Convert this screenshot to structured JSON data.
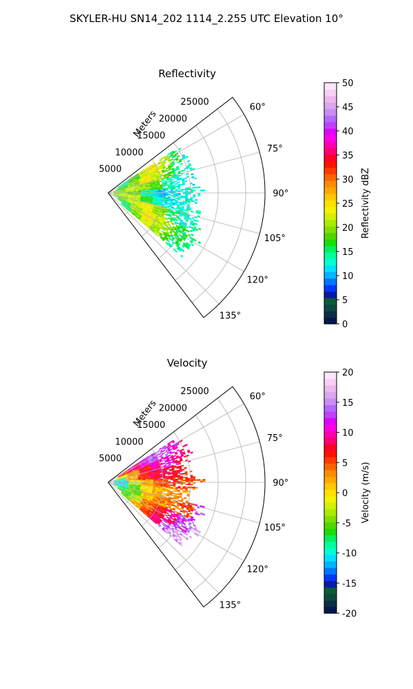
{
  "figure": {
    "suptitle": "SKYLER-HU  SN14_202  1114_2.255 UTC Elevation 10°"
  },
  "chart_data": [
    {
      "type": "heatmap",
      "projection": "polar-sector",
      "title": "Reflectivity",
      "range_label": "Meters",
      "range_max": 28500,
      "range_ticks": [
        5000,
        10000,
        15000,
        20000,
        25000
      ],
      "azimuth_range_deg": [
        52.5,
        142.5
      ],
      "azimuth_ticks_deg": [
        60,
        75,
        90,
        105,
        120,
        135
      ],
      "grid": true,
      "colorbar": {
        "label": "Reflectivity dBZ",
        "min": 0,
        "max": 50,
        "ticks": [
          0,
          5,
          10,
          15,
          20,
          25,
          30,
          35,
          40,
          45,
          50
        ],
        "colors": [
          "#06164f",
          "#0a2e46",
          "#0b4a3f",
          "#0c5a39",
          "#0b1aa6",
          "#0038ff",
          "#0075ff",
          "#00b4ff",
          "#00e0ff",
          "#00ffd5",
          "#00ff9e",
          "#00f05f",
          "#1cdc00",
          "#4fd600",
          "#7fe000",
          "#a8ec00",
          "#d2f000",
          "#f2f200",
          "#ffe000",
          "#ffc800",
          "#ffa800",
          "#ff8c00",
          "#ff6400",
          "#ff3a00",
          "#ff1000",
          "#ff0028",
          "#ff0070",
          "#ff00b0",
          "#ff00e6",
          "#e000ff",
          "#c040ff",
          "#b468ff",
          "#c88cf2",
          "#dca5ee",
          "#eeb8ef",
          "#f7d0f4",
          "#fde6fb"
        ]
      },
      "regions": [
        {
          "az": [
            57,
            66
          ],
          "r": [
            2000,
            16500
          ],
          "values": [
            14,
            18,
            22,
            24,
            21,
            16,
            13
          ]
        },
        {
          "az": [
            66,
            76
          ],
          "r": [
            1500,
            16500
          ],
          "values": [
            17,
            20,
            24,
            22,
            18,
            15,
            13
          ]
        },
        {
          "az": [
            76,
            86
          ],
          "r": [
            1000,
            16000
          ],
          "values": [
            19,
            22,
            20,
            18,
            14,
            13,
            12
          ]
        },
        {
          "az": [
            86,
            95
          ],
          "r": [
            1000,
            17500
          ],
          "values": [
            20,
            19,
            14,
            11,
            12,
            13,
            13
          ]
        },
        {
          "az": [
            95,
            104
          ],
          "r": [
            1000,
            17000
          ],
          "values": [
            21,
            22,
            17,
            13,
            12,
            13,
            13
          ]
        },
        {
          "az": [
            104,
            114
          ],
          "r": [
            1000,
            18500
          ],
          "values": [
            19,
            22,
            24,
            20,
            15,
            13,
            14
          ]
        },
        {
          "az": [
            114,
            124
          ],
          "r": [
            2000,
            19000
          ],
          "values": [
            16,
            21,
            24,
            22,
            19,
            16,
            14
          ]
        },
        {
          "az": [
            124,
            131
          ],
          "r": [
            3000,
            18000
          ],
          "values": [
            15,
            19,
            23,
            21,
            18,
            15,
            14
          ]
        }
      ]
    },
    {
      "type": "heatmap",
      "projection": "polar-sector",
      "title": "Velocity",
      "range_label": "Meters",
      "range_max": 28500,
      "range_ticks": [
        5000,
        10000,
        15000,
        20000,
        25000
      ],
      "azimuth_range_deg": [
        52.5,
        142.5
      ],
      "azimuth_ticks_deg": [
        60,
        75,
        90,
        105,
        120,
        135
      ],
      "grid": true,
      "colorbar": {
        "label": "Velocity (m/s)",
        "min": -20,
        "max": 20,
        "ticks": [
          -20,
          -15,
          -10,
          -5,
          0,
          5,
          10,
          15,
          20
        ],
        "colors": [
          "#06164f",
          "#0a2e46",
          "#0b4a3f",
          "#0c5a39",
          "#0b1aa6",
          "#0038ff",
          "#0075ff",
          "#00b4ff",
          "#00e0ff",
          "#00ffd5",
          "#00ff9e",
          "#00f05f",
          "#1cdc00",
          "#4fd600",
          "#7fe000",
          "#a8ec00",
          "#d2f000",
          "#f2f200",
          "#ffe000",
          "#ffc800",
          "#ffa800",
          "#ff8c00",
          "#ff6400",
          "#ff3a00",
          "#ff1000",
          "#ff0028",
          "#ff0070",
          "#ff00b0",
          "#ff00e6",
          "#e000ff",
          "#c040ff",
          "#b468ff",
          "#c88cf2",
          "#dca5ee",
          "#eeb8ef",
          "#f7d0f4",
          "#fde6fb"
        ]
      },
      "regions": [
        {
          "az": [
            57,
            66
          ],
          "r": [
            2000,
            16500
          ],
          "values": [
            6,
            9,
            12,
            14,
            13,
            11,
            10
          ]
        },
        {
          "az": [
            66,
            76
          ],
          "r": [
            1500,
            16500
          ],
          "values": [
            -1,
            3,
            7,
            10,
            11,
            9,
            8
          ]
        },
        {
          "az": [
            76,
            86
          ],
          "r": [
            1000,
            16000
          ],
          "values": [
            -9,
            2,
            6,
            8,
            8,
            7,
            6
          ]
        },
        {
          "az": [
            86,
            95
          ],
          "r": [
            1000,
            17500
          ],
          "values": [
            -11,
            -2,
            2,
            5,
            6,
            5,
            4
          ]
        },
        {
          "az": [
            95,
            104
          ],
          "r": [
            1000,
            17000
          ],
          "values": [
            -10,
            -5,
            0,
            2,
            3,
            3,
            3
          ]
        },
        {
          "az": [
            104,
            114
          ],
          "r": [
            1000,
            18500
          ],
          "values": [
            -8,
            -5,
            1,
            3,
            4,
            5,
            13
          ]
        },
        {
          "az": [
            114,
            124
          ],
          "r": [
            2000,
            19000
          ],
          "values": [
            -6,
            -3,
            4,
            7,
            9,
            13,
            15
          ]
        },
        {
          "az": [
            124,
            131
          ],
          "r": [
            3000,
            18000
          ],
          "values": [
            -5,
            2,
            6,
            9,
            14,
            16,
            16
          ]
        }
      ]
    }
  ]
}
